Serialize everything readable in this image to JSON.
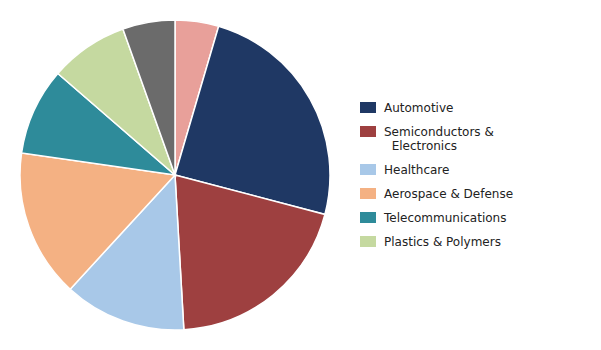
{
  "chart_data": {
    "type": "pie",
    "values": [
      5,
      27,
      22,
      14,
      17,
      10,
      9,
      6
    ],
    "colors": [
      "#e8a09a",
      "#1f3864",
      "#9e4040",
      "#a8c8e8",
      "#f4b183",
      "#2e8b9a",
      "#c5d9a0",
      "#6b6b6b"
    ],
    "series": [
      {
        "name": "Automotive",
        "color": "#1f3864"
      },
      {
        "name": "Semiconductors &\n  Electronics",
        "color": "#9e4040"
      },
      {
        "name": "Healthcare",
        "color": "#a8c8e8"
      },
      {
        "name": "Aerospace & Defense",
        "color": "#f4b183"
      },
      {
        "name": "Telecommunications",
        "color": "#2e8b9a"
      },
      {
        "name": "Plastics & Polymers",
        "color": "#c5d9a0"
      }
    ],
    "legend": "right"
  }
}
